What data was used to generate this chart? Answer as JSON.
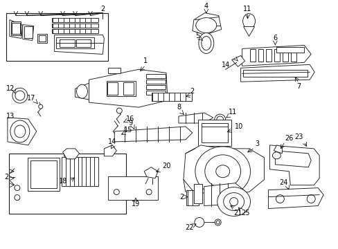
{
  "background": "#ffffff",
  "line_color": "#1a1a1a",
  "fig_width": 4.89,
  "fig_height": 3.6,
  "dpi": 100
}
